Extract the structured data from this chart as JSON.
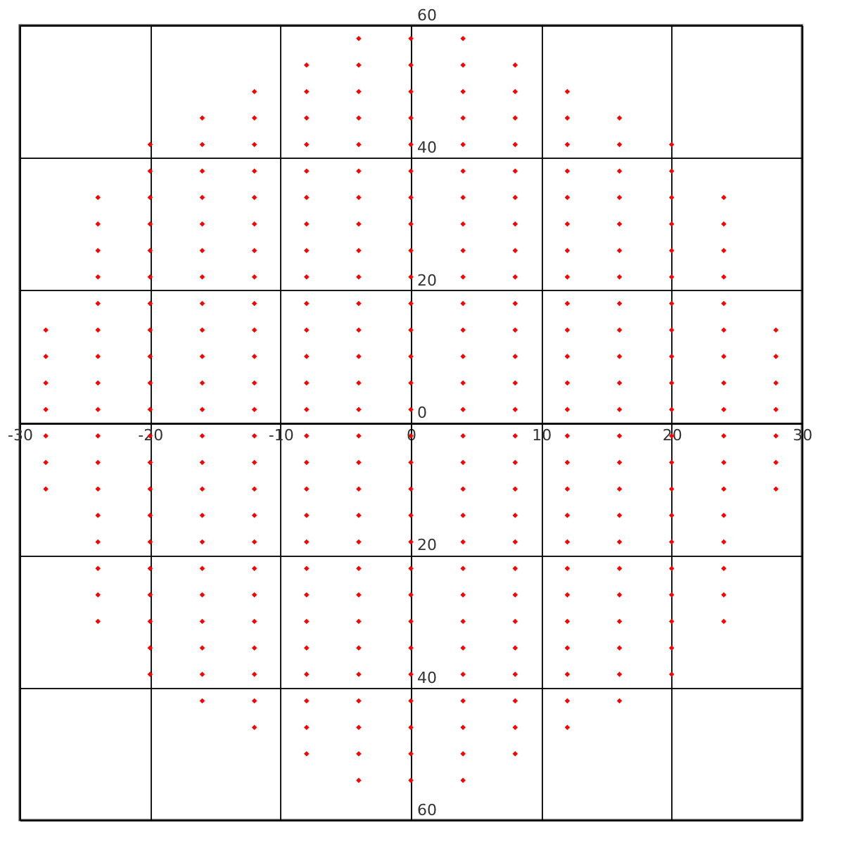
{
  "chart_data": {
    "type": "scatter",
    "marker": "diamond",
    "grid": true,
    "legend": false,
    "xlim": [
      -30,
      30
    ],
    "ylim": [
      -60,
      60
    ],
    "xticks": [
      -30,
      -20,
      -10,
      0,
      10,
      20,
      30
    ],
    "yticks": [
      {
        "value": -60,
        "label": "60"
      },
      {
        "value": -40,
        "label": "40"
      },
      {
        "value": -20,
        "label": "20"
      },
      0,
      20,
      40,
      60
    ],
    "series": [
      {
        "color": "#ff0000",
        "x": [
          -28,
          -28,
          -28,
          -28,
          -28,
          -28,
          -28
        ],
        "values": [
          -10,
          -6,
          -2,
          2,
          6,
          10,
          14
        ]
      },
      {
        "color": "#ff0000",
        "x": [
          -24,
          -24,
          -24,
          -24,
          -24,
          -24,
          -24,
          -24,
          -24,
          -24,
          -24,
          -24,
          -24,
          -24,
          -24,
          -24,
          -24
        ],
        "values": [
          -30,
          -26,
          -22,
          -18,
          -14,
          -10,
          -6,
          -2,
          2,
          6,
          10,
          14,
          18,
          22,
          26,
          30,
          34
        ]
      },
      {
        "color": "#ff0000",
        "x": [
          -20,
          -20,
          -20,
          -20,
          -20,
          -20,
          -20,
          -20,
          -20,
          -20,
          -20,
          -20,
          -20,
          -20,
          -20,
          -20,
          -20,
          -20,
          -20,
          -20,
          -20
        ],
        "values": [
          -38,
          -34,
          -30,
          -26,
          -22,
          -18,
          -14,
          -10,
          -6,
          -2,
          2,
          6,
          10,
          14,
          18,
          22,
          26,
          30,
          34,
          38,
          42
        ]
      },
      {
        "color": "#ff0000",
        "x": [
          -16,
          -16,
          -16,
          -16,
          -16,
          -16,
          -16,
          -16,
          -16,
          -16,
          -16,
          -16,
          -16,
          -16,
          -16,
          -16,
          -16,
          -16,
          -16,
          -16,
          -16,
          -16,
          -16
        ],
        "values": [
          -42,
          -38,
          -34,
          -30,
          -26,
          -22,
          -18,
          -14,
          -10,
          -6,
          -2,
          2,
          6,
          10,
          14,
          18,
          22,
          26,
          30,
          34,
          38,
          42,
          46
        ]
      },
      {
        "color": "#ff0000",
        "x": [
          -12,
          -12,
          -12,
          -12,
          -12,
          -12,
          -12,
          -12,
          -12,
          -12,
          -12,
          -12,
          -12,
          -12,
          -12,
          -12,
          -12,
          -12,
          -12,
          -12,
          -12,
          -12,
          -12,
          -12,
          -12
        ],
        "values": [
          -46,
          -42,
          -38,
          -34,
          -30,
          -26,
          -22,
          -18,
          -14,
          -10,
          -6,
          -2,
          2,
          6,
          10,
          14,
          18,
          22,
          26,
          30,
          34,
          38,
          42,
          46,
          50
        ]
      },
      {
        "color": "#ff0000",
        "x": [
          -8,
          -8,
          -8,
          -8,
          -8,
          -8,
          -8,
          -8,
          -8,
          -8,
          -8,
          -8,
          -8,
          -8,
          -8,
          -8,
          -8,
          -8,
          -8,
          -8,
          -8,
          -8,
          -8,
          -8,
          -8,
          -8,
          -8
        ],
        "values": [
          -50,
          -46,
          -42,
          -38,
          -34,
          -30,
          -26,
          -22,
          -18,
          -14,
          -10,
          -6,
          -2,
          2,
          6,
          10,
          14,
          18,
          22,
          26,
          30,
          34,
          38,
          42,
          46,
          50,
          54
        ]
      },
      {
        "color": "#ff0000",
        "x": [
          -4,
          -4,
          -4,
          -4,
          -4,
          -4,
          -4,
          -4,
          -4,
          -4,
          -4,
          -4,
          -4,
          -4,
          -4,
          -4,
          -4,
          -4,
          -4,
          -4,
          -4,
          -4,
          -4,
          -4,
          -4,
          -4,
          -4,
          -4,
          -4
        ],
        "values": [
          -54,
          -50,
          -46,
          -42,
          -38,
          -34,
          -30,
          -26,
          -22,
          -18,
          -14,
          -10,
          -6,
          -2,
          2,
          6,
          10,
          14,
          18,
          22,
          26,
          30,
          34,
          38,
          42,
          46,
          50,
          54,
          58
        ]
      },
      {
        "color": "#ff0000",
        "x": [
          0,
          0,
          0,
          0,
          0,
          0,
          0,
          0,
          0,
          0,
          0,
          0,
          0,
          0,
          0,
          0,
          0,
          0,
          0,
          0,
          0,
          0,
          0,
          0,
          0,
          0,
          0,
          0,
          0
        ],
        "values": [
          -54,
          -50,
          -46,
          -42,
          -38,
          -34,
          -30,
          -26,
          -22,
          -18,
          -14,
          -10,
          -6,
          -2,
          2,
          6,
          10,
          14,
          18,
          22,
          26,
          30,
          34,
          38,
          42,
          46,
          50,
          54,
          58
        ]
      },
      {
        "color": "#ff0000",
        "x": [
          4,
          4,
          4,
          4,
          4,
          4,
          4,
          4,
          4,
          4,
          4,
          4,
          4,
          4,
          4,
          4,
          4,
          4,
          4,
          4,
          4,
          4,
          4,
          4,
          4,
          4,
          4,
          4,
          4
        ],
        "values": [
          -54,
          -50,
          -46,
          -42,
          -38,
          -34,
          -30,
          -26,
          -22,
          -18,
          -14,
          -10,
          -6,
          -2,
          2,
          6,
          10,
          14,
          18,
          22,
          26,
          30,
          34,
          38,
          42,
          46,
          50,
          54,
          58
        ]
      },
      {
        "color": "#ff0000",
        "x": [
          8,
          8,
          8,
          8,
          8,
          8,
          8,
          8,
          8,
          8,
          8,
          8,
          8,
          8,
          8,
          8,
          8,
          8,
          8,
          8,
          8,
          8,
          8,
          8,
          8,
          8,
          8
        ],
        "values": [
          -50,
          -46,
          -42,
          -38,
          -34,
          -30,
          -26,
          -22,
          -18,
          -14,
          -10,
          -6,
          -2,
          2,
          6,
          10,
          14,
          18,
          22,
          26,
          30,
          34,
          38,
          42,
          46,
          50,
          54
        ]
      },
      {
        "color": "#ff0000",
        "x": [
          12,
          12,
          12,
          12,
          12,
          12,
          12,
          12,
          12,
          12,
          12,
          12,
          12,
          12,
          12,
          12,
          12,
          12,
          12,
          12,
          12,
          12,
          12,
          12,
          12
        ],
        "values": [
          -46,
          -42,
          -38,
          -34,
          -30,
          -26,
          -22,
          -18,
          -14,
          -10,
          -6,
          -2,
          2,
          6,
          10,
          14,
          18,
          22,
          26,
          30,
          34,
          38,
          42,
          46,
          50
        ]
      },
      {
        "color": "#ff0000",
        "x": [
          16,
          16,
          16,
          16,
          16,
          16,
          16,
          16,
          16,
          16,
          16,
          16,
          16,
          16,
          16,
          16,
          16,
          16,
          16,
          16,
          16,
          16,
          16
        ],
        "values": [
          -42,
          -38,
          -34,
          -30,
          -26,
          -22,
          -18,
          -14,
          -10,
          -6,
          -2,
          2,
          6,
          10,
          14,
          18,
          22,
          26,
          30,
          34,
          38,
          42,
          46
        ]
      },
      {
        "color": "#ff0000",
        "x": [
          20,
          20,
          20,
          20,
          20,
          20,
          20,
          20,
          20,
          20,
          20,
          20,
          20,
          20,
          20,
          20,
          20,
          20,
          20,
          20,
          20
        ],
        "values": [
          -38,
          -34,
          -30,
          -26,
          -22,
          -18,
          -14,
          -10,
          -6,
          -2,
          2,
          6,
          10,
          14,
          18,
          22,
          26,
          30,
          34,
          38,
          42
        ]
      },
      {
        "color": "#ff0000",
        "x": [
          24,
          24,
          24,
          24,
          24,
          24,
          24,
          24,
          24,
          24,
          24,
          24,
          24,
          24,
          24,
          24,
          24
        ],
        "values": [
          -30,
          -26,
          -22,
          -18,
          -14,
          -10,
          -6,
          -2,
          2,
          6,
          10,
          14,
          18,
          22,
          26,
          30,
          34
        ]
      },
      {
        "color": "#ff0000",
        "x": [
          28,
          28,
          28,
          28,
          28,
          28,
          28
        ],
        "values": [
          -10,
          -6,
          -2,
          2,
          6,
          10,
          14
        ]
      }
    ]
  }
}
